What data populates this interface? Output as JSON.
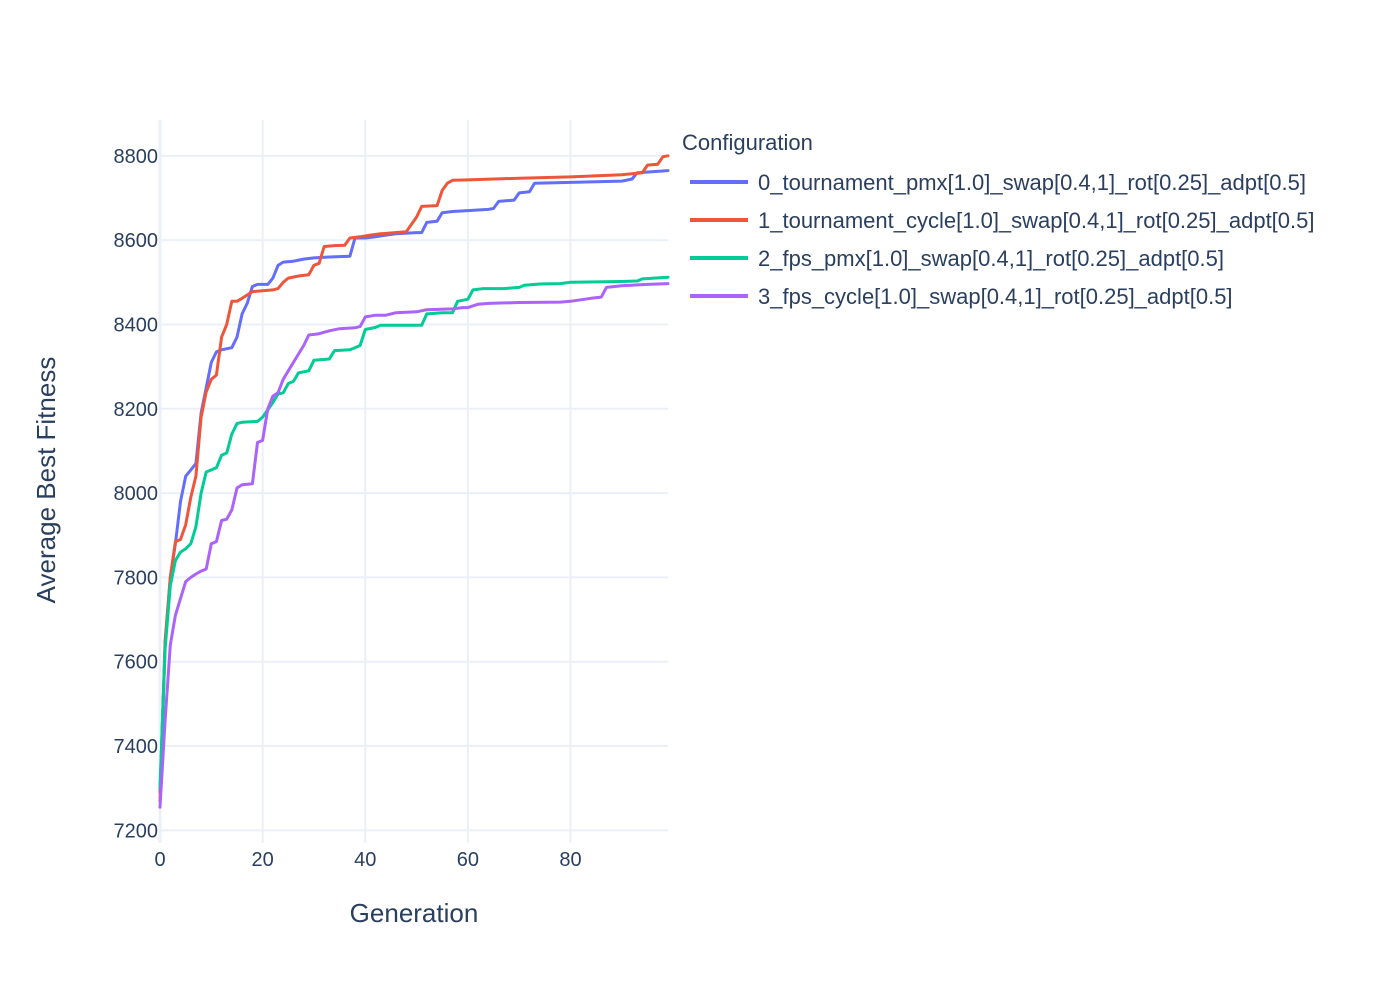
{
  "chart_data": {
    "type": "line",
    "xlabel": "Generation",
    "ylabel": "Average Best Fitness",
    "xlim": [
      0,
      99
    ],
    "ylim": [
      7170,
      8885
    ],
    "xticks": [
      0,
      20,
      40,
      60,
      80
    ],
    "xtick_labels": [
      "0",
      "20",
      "40",
      "60",
      "80"
    ],
    "yticks": [
      7200,
      7400,
      7600,
      7800,
      8000,
      8200,
      8400,
      8600,
      8800
    ],
    "ytick_labels": [
      "7200",
      "7400",
      "7600",
      "7800",
      "8000",
      "8200",
      "8400",
      "8600",
      "8800"
    ],
    "grid": true,
    "legend": {
      "title": "Configuration",
      "placement": "top-right"
    },
    "series": [
      {
        "name": "0_tournament_pmx[1.0]_swap[0.4,1]_rot[0.25]_adpt[0.5]",
        "color": "#636efa",
        "points": [
          [
            0,
            7290
          ],
          [
            1,
            7640
          ],
          [
            2,
            7800
          ],
          [
            3,
            7880
          ],
          [
            4,
            7980
          ],
          [
            5,
            8040
          ],
          [
            6,
            8055
          ],
          [
            7,
            8070
          ],
          [
            8,
            8190
          ],
          [
            9,
            8250
          ],
          [
            10,
            8310
          ],
          [
            11,
            8335
          ],
          [
            12,
            8340
          ],
          [
            14,
            8345
          ],
          [
            15,
            8370
          ],
          [
            16,
            8425
          ],
          [
            17,
            8450
          ],
          [
            18,
            8490
          ],
          [
            19,
            8495
          ],
          [
            21,
            8495
          ],
          [
            22,
            8510
          ],
          [
            23,
            8540
          ],
          [
            24,
            8548
          ],
          [
            26,
            8550
          ],
          [
            28,
            8555
          ],
          [
            30,
            8558
          ],
          [
            33,
            8560
          ],
          [
            37,
            8562
          ],
          [
            38,
            8605
          ],
          [
            40,
            8605
          ],
          [
            42,
            8608
          ],
          [
            44,
            8612
          ],
          [
            46,
            8615
          ],
          [
            50,
            8618
          ],
          [
            51,
            8618
          ],
          [
            52,
            8642
          ],
          [
            54,
            8645
          ],
          [
            55,
            8665
          ],
          [
            57,
            8668
          ],
          [
            60,
            8670
          ],
          [
            64,
            8673
          ],
          [
            65,
            8675
          ],
          [
            66,
            8692
          ],
          [
            69,
            8695
          ],
          [
            70,
            8712
          ],
          [
            72,
            8715
          ],
          [
            73,
            8735
          ],
          [
            80,
            8737
          ],
          [
            90,
            8740
          ],
          [
            92,
            8745
          ],
          [
            93,
            8760
          ],
          [
            99,
            8765
          ]
        ]
      },
      {
        "name": "1_tournament_cycle[1.0]_swap[0.4,1]_rot[0.25]_adpt[0.5]",
        "color": "#ef553b",
        "points": [
          [
            0,
            7270
          ],
          [
            1,
            7650
          ],
          [
            2,
            7800
          ],
          [
            3,
            7885
          ],
          [
            4,
            7890
          ],
          [
            5,
            7925
          ],
          [
            6,
            7990
          ],
          [
            7,
            8040
          ],
          [
            8,
            8180
          ],
          [
            9,
            8240
          ],
          [
            10,
            8270
          ],
          [
            11,
            8280
          ],
          [
            12,
            8370
          ],
          [
            13,
            8400
          ],
          [
            14,
            8455
          ],
          [
            15,
            8455
          ],
          [
            16,
            8462
          ],
          [
            17,
            8470
          ],
          [
            18,
            8478
          ],
          [
            20,
            8480
          ],
          [
            22,
            8482
          ],
          [
            23,
            8485
          ],
          [
            24,
            8500
          ],
          [
            25,
            8510
          ],
          [
            27,
            8515
          ],
          [
            29,
            8518
          ],
          [
            30,
            8540
          ],
          [
            31,
            8545
          ],
          [
            32,
            8585
          ],
          [
            34,
            8587
          ],
          [
            36,
            8588
          ],
          [
            37,
            8605
          ],
          [
            39,
            8608
          ],
          [
            41,
            8612
          ],
          [
            43,
            8615
          ],
          [
            48,
            8620
          ],
          [
            50,
            8655
          ],
          [
            51,
            8680
          ],
          [
            54,
            8682
          ],
          [
            55,
            8718
          ],
          [
            56,
            8735
          ],
          [
            57,
            8742
          ],
          [
            60,
            8743
          ],
          [
            70,
            8747
          ],
          [
            80,
            8750
          ],
          [
            90,
            8755
          ],
          [
            94,
            8760
          ],
          [
            95,
            8778
          ],
          [
            97,
            8780
          ],
          [
            98,
            8798
          ],
          [
            99,
            8800
          ]
        ]
      },
      {
        "name": "2_fps_pmx[1.0]_swap[0.4,1]_rot[0.25]_adpt[0.5]",
        "color": "#00cc96",
        "points": [
          [
            0,
            7300
          ],
          [
            1,
            7630
          ],
          [
            2,
            7780
          ],
          [
            3,
            7840
          ],
          [
            4,
            7860
          ],
          [
            5,
            7868
          ],
          [
            6,
            7880
          ],
          [
            7,
            7920
          ],
          [
            8,
            8000
          ],
          [
            9,
            8050
          ],
          [
            10,
            8055
          ],
          [
            11,
            8060
          ],
          [
            12,
            8090
          ],
          [
            13,
            8095
          ],
          [
            14,
            8140
          ],
          [
            15,
            8165
          ],
          [
            16,
            8168
          ],
          [
            19,
            8170
          ],
          [
            20,
            8180
          ],
          [
            22,
            8215
          ],
          [
            23,
            8235
          ],
          [
            24,
            8238
          ],
          [
            25,
            8260
          ],
          [
            26,
            8265
          ],
          [
            27,
            8285
          ],
          [
            29,
            8290
          ],
          [
            30,
            8315
          ],
          [
            33,
            8318
          ],
          [
            34,
            8338
          ],
          [
            37,
            8340
          ],
          [
            38,
            8345
          ],
          [
            39,
            8350
          ],
          [
            40,
            8388
          ],
          [
            42,
            8393
          ],
          [
            43,
            8398
          ],
          [
            51,
            8398
          ],
          [
            52,
            8425
          ],
          [
            55,
            8428
          ],
          [
            57,
            8428
          ],
          [
            58,
            8455
          ],
          [
            60,
            8460
          ],
          [
            61,
            8482
          ],
          [
            63,
            8485
          ],
          [
            67,
            8485
          ],
          [
            70,
            8488
          ],
          [
            71,
            8493
          ],
          [
            74,
            8496
          ],
          [
            78,
            8497
          ],
          [
            80,
            8500
          ],
          [
            90,
            8502
          ],
          [
            93,
            8503
          ],
          [
            94,
            8508
          ],
          [
            99,
            8512
          ]
        ]
      },
      {
        "name": "3_fps_cycle[1.0]_swap[0.4,1]_rot[0.25]_adpt[0.5]",
        "color": "#ab63fa",
        "points": [
          [
            0,
            7255
          ],
          [
            1,
            7460
          ],
          [
            2,
            7640
          ],
          [
            3,
            7710
          ],
          [
            4,
            7750
          ],
          [
            5,
            7790
          ],
          [
            6,
            7800
          ],
          [
            7,
            7808
          ],
          [
            8,
            7815
          ],
          [
            9,
            7820
          ],
          [
            10,
            7880
          ],
          [
            11,
            7885
          ],
          [
            12,
            7935
          ],
          [
            13,
            7938
          ],
          [
            14,
            7960
          ],
          [
            15,
            8012
          ],
          [
            16,
            8020
          ],
          [
            18,
            8022
          ],
          [
            19,
            8120
          ],
          [
            20,
            8125
          ],
          [
            21,
            8200
          ],
          [
            22,
            8230
          ],
          [
            23,
            8238
          ],
          [
            24,
            8270
          ],
          [
            26,
            8310
          ],
          [
            27,
            8330
          ],
          [
            28,
            8350
          ],
          [
            29,
            8375
          ],
          [
            31,
            8378
          ],
          [
            33,
            8385
          ],
          [
            35,
            8390
          ],
          [
            38,
            8392
          ],
          [
            39,
            8395
          ],
          [
            40,
            8418
          ],
          [
            42,
            8422
          ],
          [
            44,
            8422
          ],
          [
            46,
            8428
          ],
          [
            50,
            8430
          ],
          [
            52,
            8435
          ],
          [
            57,
            8437
          ],
          [
            59,
            8440
          ],
          [
            60,
            8440
          ],
          [
            62,
            8448
          ],
          [
            64,
            8450
          ],
          [
            70,
            8452
          ],
          [
            78,
            8453
          ],
          [
            80,
            8455
          ],
          [
            84,
            8462
          ],
          [
            86,
            8465
          ],
          [
            87,
            8488
          ],
          [
            90,
            8492
          ],
          [
            95,
            8495
          ],
          [
            99,
            8497
          ]
        ]
      }
    ]
  }
}
